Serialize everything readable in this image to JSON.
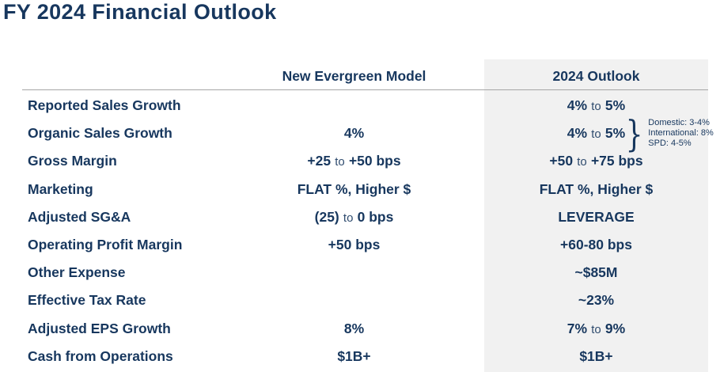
{
  "page": {
    "title": "FY 2024 Financial Outlook"
  },
  "colors": {
    "text_navy": "#17375E",
    "column_bg": "#F1F1F1",
    "divider": "#A6A6A6"
  },
  "table": {
    "columns": [
      "New Evergreen Model",
      "2024 Outlook"
    ],
    "rows": [
      {
        "label": "Reported Sales Growth",
        "evergreen": "",
        "outlook": "4% to 5%"
      },
      {
        "label": "Organic Sales Growth",
        "evergreen": "4%",
        "outlook": "4% to 5%",
        "annotation": [
          "Domestic: 3-4%",
          "International: 8%",
          "SPD: 4-5%"
        ],
        "brace_glyph": "}"
      },
      {
        "label": "Gross Margin",
        "evergreen": "+25 to +50 bps",
        "outlook": "+50 to +75 bps"
      },
      {
        "label": "Marketing",
        "evergreen": "FLAT %, Higher $",
        "outlook": "FLAT %, Higher $"
      },
      {
        "label": "Adjusted SG&A",
        "evergreen": "(25) to 0 bps",
        "outlook": "LEVERAGE"
      },
      {
        "label": "Operating Profit Margin",
        "evergreen": "+50 bps",
        "outlook": "+60-80 bps"
      },
      {
        "label": "Other Expense",
        "evergreen": "",
        "outlook": "~$85M"
      },
      {
        "label": "Effective Tax Rate",
        "evergreen": "",
        "outlook": "~23%"
      },
      {
        "label": "Adjusted EPS Growth",
        "evergreen": "8%",
        "outlook": "7% to 9%"
      },
      {
        "label": "Cash from Operations",
        "evergreen": "$1B+",
        "outlook": "$1B+"
      }
    ]
  }
}
